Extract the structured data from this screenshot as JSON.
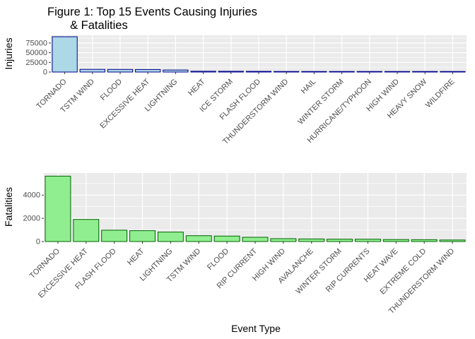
{
  "title_line1": "Figure 1: Top 15 Events Causing Injuries",
  "title_line2": "       & Fatalities",
  "xlabel": "Event Type",
  "colors": {
    "injuries_fill": "#add8e6",
    "injuries_stroke": "#00008b",
    "fatalities_fill": "#90ee90",
    "fatalities_stroke": "#006400",
    "panel": "#ebebeb",
    "grid": "#ffffff",
    "tick_text": "#4d4d4d"
  },
  "chart_data": [
    {
      "type": "bar",
      "ylabel": "Injuries",
      "ylim": [
        0,
        95000
      ],
      "yticks": [
        0,
        25000,
        50000,
        75000
      ],
      "grid": true,
      "categories": [
        "TORNADO",
        "TSTM WIND",
        "FLOOD",
        "EXCESSIVE HEAT",
        "LIGHTNING",
        "HEAT",
        "ICE STORM",
        "FLASH FLOOD",
        "THUNDERSTORM WIND",
        "HAIL",
        "WINTER STORM",
        "HURRICANE/TYPHOON",
        "HIGH WIND",
        "HEAVY SNOW",
        "WILDFIRE"
      ],
      "values": [
        91346,
        6957,
        6789,
        6525,
        5230,
        2100,
        1975,
        1777,
        1488,
        1361,
        1321,
        1275,
        1137,
        1021,
        911
      ]
    },
    {
      "type": "bar",
      "ylabel": "Fatalities",
      "ylim": [
        0,
        5900
      ],
      "yticks": [
        0,
        2000,
        4000
      ],
      "grid": true,
      "categories": [
        "TORNADO",
        "EXCESSIVE HEAT",
        "FLASH FLOOD",
        "HEAT",
        "LIGHTNING",
        "TSTM WIND",
        "FLOOD",
        "RIP CURRENT",
        "HIGH WIND",
        "AVALANCHE",
        "WINTER STORM",
        "RIP CURRENTS",
        "HEAT WAVE",
        "EXTREME COLD",
        "THUNDERSTORM WIND"
      ],
      "values": [
        5633,
        1903,
        978,
        937,
        816,
        504,
        470,
        368,
        248,
        224,
        206,
        204,
        172,
        160,
        133
      ]
    }
  ]
}
